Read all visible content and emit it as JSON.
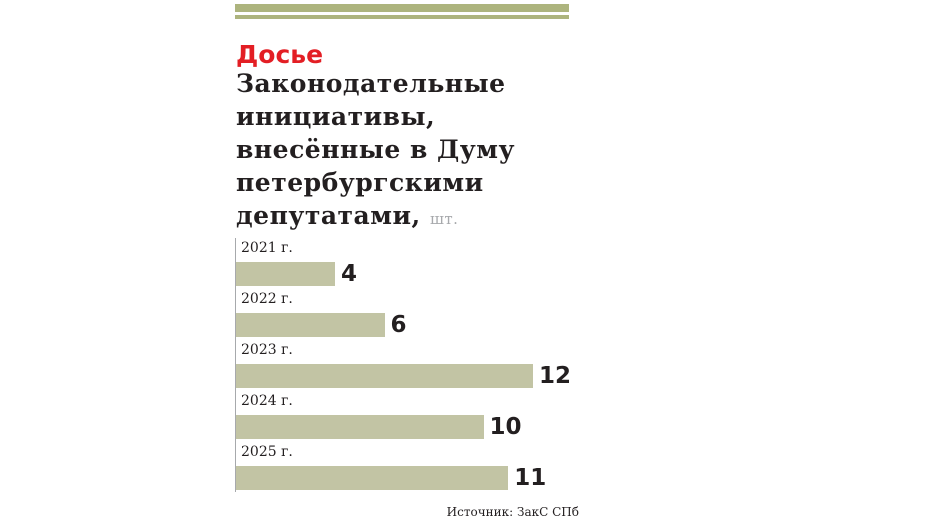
{
  "header": {
    "kicker": "Досье",
    "title": "Законодательные инициативы, внесённые в Думу петербургскими депутатами,",
    "unit": "шт.",
    "colors": {
      "kicker": "#e31e24",
      "rule": "#adb47e",
      "bar": "#c2c4a4",
      "text": "#231f20",
      "unit": "#a7a9ac"
    }
  },
  "chart": {
    "rows": [
      {
        "label": "2021 г.",
        "value": "4"
      },
      {
        "label": "2022 г.",
        "value": "6"
      },
      {
        "label": "2023 г.",
        "value": "12"
      },
      {
        "label": "2024 г.",
        "value": "10"
      },
      {
        "label": "2025 г.",
        "value": "11"
      }
    ]
  },
  "footer": {
    "source": "Источник: ЗакС СПб"
  },
  "chart_data": {
    "type": "bar",
    "orientation": "horizontal",
    "title": "Законодательные инициативы, внесённые в Думу петербургскими депутатами, шт.",
    "subtitle": "Досье",
    "categories": [
      "2021 г.",
      "2022 г.",
      "2023 г.",
      "2024 г.",
      "2025 г."
    ],
    "values": [
      4,
      6,
      12,
      10,
      11
    ],
    "xlabel": "",
    "ylabel": "",
    "unit": "шт.",
    "xlim": [
      0,
      12
    ],
    "grid": false,
    "legend": null,
    "data_labels": true,
    "source": "Источник: ЗакС СПб"
  }
}
